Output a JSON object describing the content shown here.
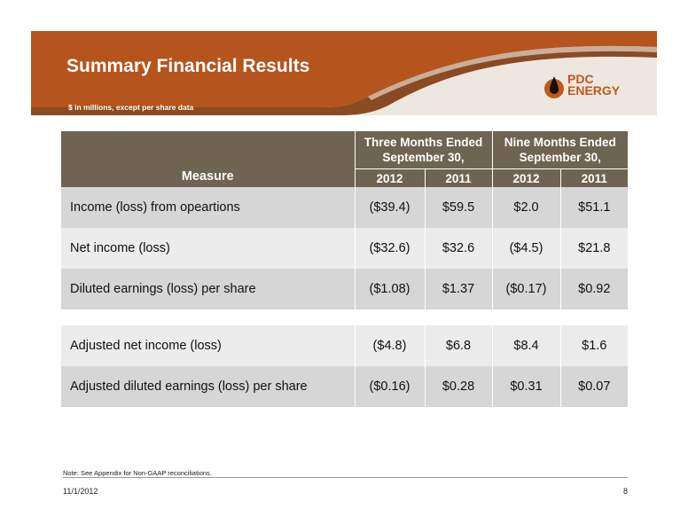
{
  "header": {
    "title": "Summary Financial Results",
    "subtitle": "$ in millions, except per share data",
    "logo": {
      "line1": "PDC",
      "line2": "ENERGY",
      "icon": "drop-logo-icon"
    }
  },
  "colors": {
    "banner_orange": "#b5541c",
    "banner_brown": "#8a4b22",
    "banner_light": "#ede7e0",
    "header_gray": "#6f6451",
    "row_dark": "#d6d6d6",
    "row_light": "#ececec",
    "logo_orange": "#c0591b"
  },
  "table": {
    "measure_header": "Measure",
    "groups": [
      "Three Months Ended September 30,",
      "Nine Months Ended September 30,"
    ],
    "years": [
      "2012",
      "2011",
      "2012",
      "2011"
    ],
    "rows": [
      {
        "label": "Income (loss) from opeartions",
        "values": [
          "($39.4)",
          "$59.5",
          "$2.0",
          "$51.1"
        ]
      },
      {
        "label": "Net income (loss)",
        "values": [
          "($32.6)",
          "$32.6",
          "($4.5)",
          "$21.8"
        ]
      },
      {
        "label": "Diluted earnings (loss) per share",
        "values": [
          "($1.08)",
          "$1.37",
          "($0.17)",
          "$0.92"
        ]
      },
      {
        "label": "Adjusted net income (loss)",
        "values": [
          "($4.8)",
          "$6.8",
          "$8.4",
          "$1.6"
        ]
      },
      {
        "label": "Adjusted diluted earnings (loss) per share",
        "values": [
          "($0.16)",
          "$0.28",
          "$0.31",
          "$0.07"
        ]
      }
    ]
  },
  "footer": {
    "note": "Note: See Appendix for Non-GAAP reconciliations.",
    "date": "11/1/2012",
    "page": "8"
  }
}
